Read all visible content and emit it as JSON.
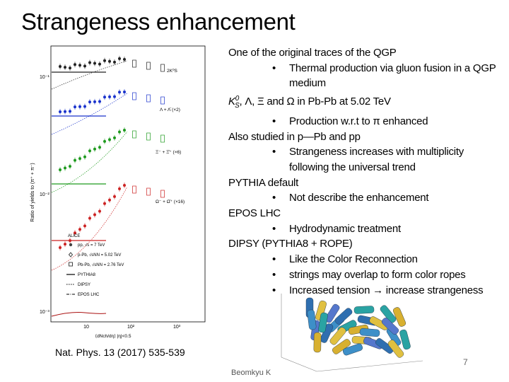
{
  "slide": {
    "title": "Strangeness enhancement",
    "figure": {
      "y_axis_title": "Ratio of yields to (π⁺ + π⁻)",
      "x_axis_title": "⟨dNch/dη⟩ |η|<0.5",
      "y_tick_labels": [
        "10⁻¹",
        "10⁻²",
        "10⁻³"
      ],
      "x_tick_labels": [
        "10",
        "10²",
        "10³"
      ],
      "species": [
        "2K⁰S",
        "Λ + Λ̄ (×2)",
        "Ξ⁻ + Ξ̄⁺ (×6)",
        "Ω⁻ + Ω̄⁺ (×16)"
      ],
      "legend": [
        "ALICE",
        "pp, √s = 7 TeV",
        "p-Pb, √sNN = 5.02 TeV",
        "Pb-Pb, √sNN = 2.76 TeV",
        "PYTHIA8",
        "DIPSY",
        "EPOS LHC"
      ]
    },
    "caption": "Nat. Phys. 13 (2017) 535-539",
    "bullets": [
      {
        "level": 1,
        "text": "One of the original traces of the QGP"
      },
      {
        "level": 2,
        "text": "Thermal production via gluon fusion in a QGP medium"
      },
      {
        "level": 1,
        "symbol": "K",
        "sub": "S",
        "sup": "0",
        "text": ", Λ, Ξ and Ω in Pb-Pb at 5.02 TeV"
      },
      {
        "level": 2,
        "text": "Production w.r.t to π enhanced"
      },
      {
        "level": 1,
        "text": "Also studied in p—Pb and pp"
      },
      {
        "level": 2,
        "text": "Strangeness increases with multiplicity following the universal trend"
      },
      {
        "level": 1,
        "text": "PYTHIA default"
      },
      {
        "level": 2,
        "text": "Not describe the enhancement"
      },
      {
        "level": 1,
        "text": "EPOS LHC"
      },
      {
        "level": 2,
        "text": "Hydrodynamic treatment"
      },
      {
        "level": 1,
        "text": "DIPSY (PYTHIA8 + ROPE)"
      },
      {
        "level": 2,
        "text": "Like the Color Reconnection"
      },
      {
        "level": 2,
        "text": "strings may overlap to form color ropes"
      },
      {
        "level": 2,
        "text": "Increased tension → increase strangeness"
      }
    ],
    "page_number": "7",
    "footer": "Beomkyu K"
  }
}
